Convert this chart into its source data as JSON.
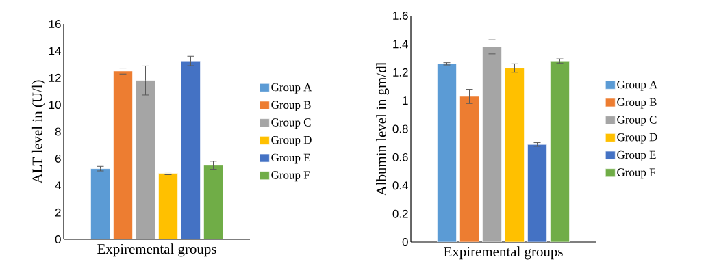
{
  "chart_data": [
    {
      "type": "bar",
      "xlabel": "Expiremental groups",
      "ylabel": "ALT level in  (U/l)",
      "categories": [
        null
      ],
      "ylim": [
        0,
        16
      ],
      "yticks": [
        0,
        2,
        4,
        6,
        8,
        10,
        12,
        14,
        16
      ],
      "legend": "right",
      "series": [
        {
          "name": "Group A",
          "color": "#5b9bd5",
          "values": [
            5.25
          ],
          "errors": [
            0.17
          ]
        },
        {
          "name": "Group B",
          "color": "#ed7d31",
          "values": [
            12.5
          ],
          "errors": [
            0.22
          ]
        },
        {
          "name": "Group C",
          "color": "#a5a5a5",
          "values": [
            11.8
          ],
          "errors": [
            1.08
          ]
        },
        {
          "name": "Group D",
          "color": "#ffc000",
          "values": [
            4.9
          ],
          "errors": [
            0.1
          ]
        },
        {
          "name": "Group E",
          "color": "#4472c4",
          "values": [
            13.25
          ],
          "errors": [
            0.35
          ]
        },
        {
          "name": "Group F",
          "color": "#70ad47",
          "values": [
            5.5
          ],
          "errors": [
            0.3
          ]
        }
      ]
    },
    {
      "type": "bar",
      "xlabel": "Expiremental groups",
      "ylabel": "Albumin  level  in  gm/dl",
      "categories": [
        null
      ],
      "ylim": [
        0,
        1.6
      ],
      "yticks": [
        0,
        0.2,
        0.4,
        0.6,
        0.8,
        1,
        1.2,
        1.4,
        1.6
      ],
      "legend": "right",
      "series": [
        {
          "name": "Group A",
          "color": "#5b9bd5",
          "values": [
            1.26
          ],
          "errors": [
            0.008
          ]
        },
        {
          "name": "Group B",
          "color": "#ed7d31",
          "values": [
            1.03
          ],
          "errors": [
            0.05
          ]
        },
        {
          "name": "Group C",
          "color": "#a5a5a5",
          "values": [
            1.38
          ],
          "errors": [
            0.05
          ]
        },
        {
          "name": "Group D",
          "color": "#ffc000",
          "values": [
            1.23
          ],
          "errors": [
            0.03
          ]
        },
        {
          "name": "Group E",
          "color": "#4472c4",
          "values": [
            0.69
          ],
          "errors": [
            0.013
          ]
        },
        {
          "name": "Group F",
          "color": "#70ad47",
          "values": [
            1.28
          ],
          "errors": [
            0.015
          ]
        }
      ]
    }
  ]
}
